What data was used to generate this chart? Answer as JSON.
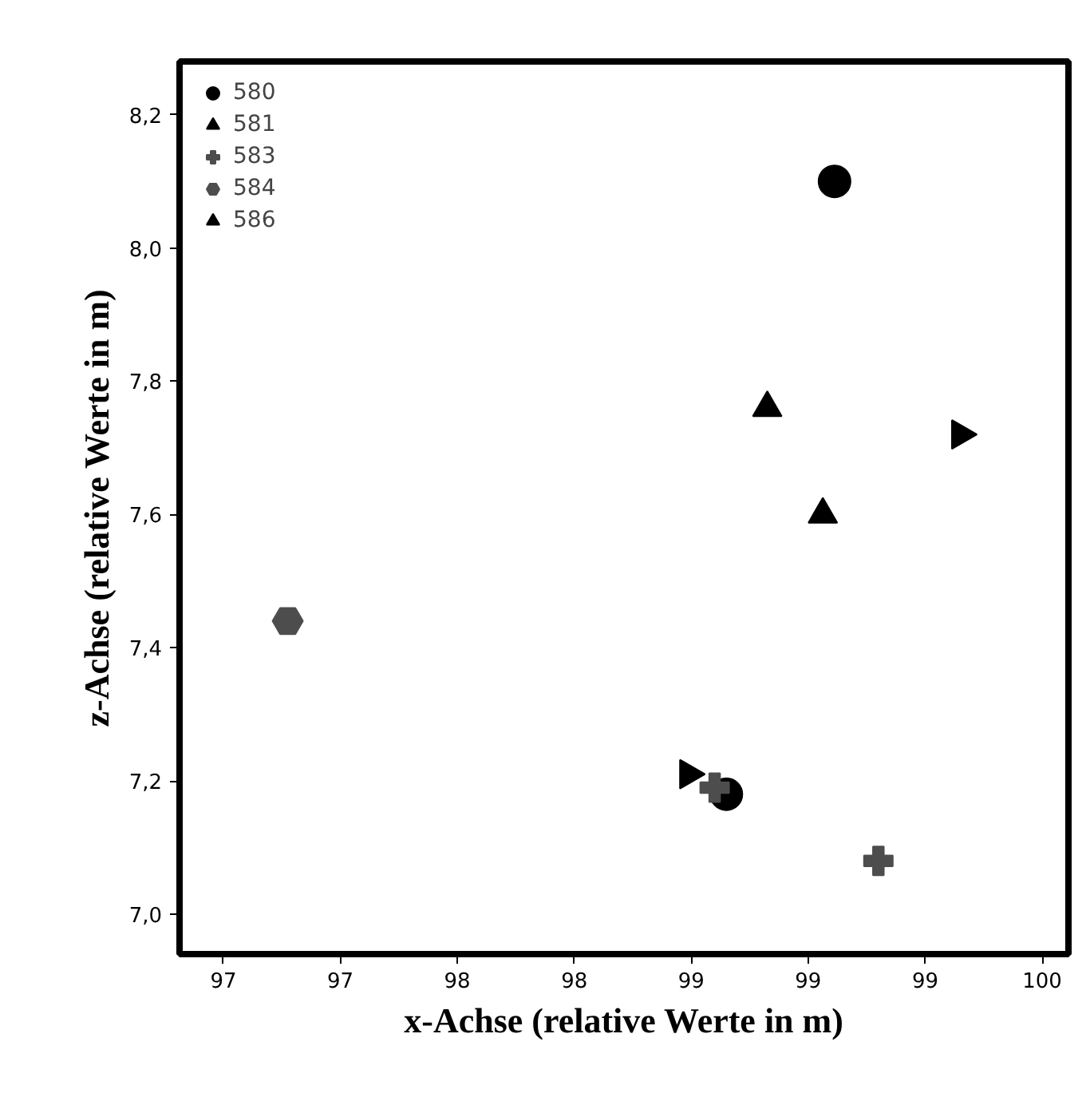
{
  "chart_data": {
    "type": "scatter",
    "xlabel": "x-Achse (relative Werte in m)",
    "ylabel": "z-Achse (relative Werte in m)",
    "xlim": [
      96.85,
      99.89
    ],
    "ylim": [
      6.94,
      8.28
    ],
    "xticks": [
      {
        "value": 97.0,
        "label": "97"
      },
      {
        "value": 97.4,
        "label": "97"
      },
      {
        "value": 97.8,
        "label": "98"
      },
      {
        "value": 98.2,
        "label": "98"
      },
      {
        "value": 98.6,
        "label": "99"
      },
      {
        "value": 99.0,
        "label": "99"
      },
      {
        "value": 99.4,
        "label": "99"
      },
      {
        "value": 99.8,
        "label": "100"
      }
    ],
    "yticks": [
      {
        "value": 7.0,
        "label": "7,0"
      },
      {
        "value": 7.2,
        "label": "7,2"
      },
      {
        "value": 7.4,
        "label": "7,4"
      },
      {
        "value": 7.6,
        "label": "7,6"
      },
      {
        "value": 7.8,
        "label": "7,8"
      },
      {
        "value": 8.0,
        "label": "8,0"
      },
      {
        "value": 8.2,
        "label": "8,2"
      }
    ],
    "grid": false,
    "legend": "top left",
    "series": [
      {
        "name": "580",
        "color": "#000000",
        "marker": "circle",
        "x": [
          99.09,
          98.72
        ],
        "values": [
          8.1,
          7.18
        ]
      },
      {
        "name": "581",
        "color": "#000000",
        "marker": "triangle-right",
        "x": [
          99.52,
          98.59
        ],
        "values": [
          7.72,
          7.21
        ]
      },
      {
        "name": "583",
        "color": "#4d4d4d",
        "marker": "cross",
        "x": [
          98.68,
          99.24
        ],
        "values": [
          7.19,
          7.08
        ]
      },
      {
        "name": "584",
        "color": "#4d4d4d",
        "x": [
          97.22
        ],
        "values": [
          7.44
        ]
      },
      {
        "name": "586",
        "color": "#000000",
        "marker": "triangle",
        "x": [
          98.86,
          99.05
        ],
        "values": [
          7.76,
          7.6
        ]
      }
    ]
  }
}
